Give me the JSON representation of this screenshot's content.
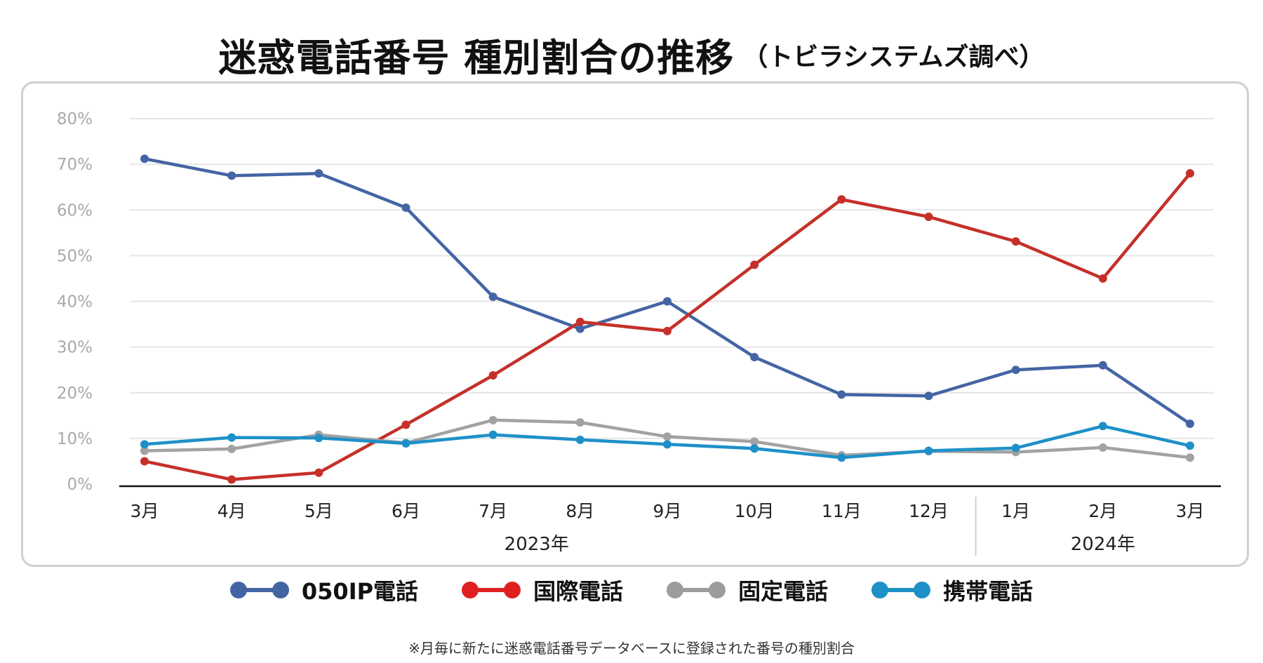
{
  "title": "迷惑電話番号 種別割合の推移",
  "subtitle": "（トビラシステムズ調べ）",
  "footnote": "※月毎に新たに迷惑電話番号データベースに登録された番号の種別割合",
  "chart_data": {
    "type": "line",
    "categories": [
      "3月",
      "4月",
      "5月",
      "6月",
      "7月",
      "8月",
      "9月",
      "10月",
      "11月",
      "12月",
      "1月",
      "2月",
      "3月"
    ],
    "year_labels": [
      {
        "label": "2023年",
        "from": 0,
        "to": 9
      },
      {
        "label": "2024年",
        "from": 10,
        "to": 12
      }
    ],
    "ylim": [
      0,
      80
    ],
    "yticks": [
      0,
      10,
      20,
      30,
      40,
      50,
      60,
      70,
      80
    ],
    "ytick_labels": [
      "0%",
      "10%",
      "20%",
      "30%",
      "40%",
      "50%",
      "60%",
      "70%",
      "80%"
    ],
    "grid": true,
    "legend_position": "bottom",
    "series": [
      {
        "name": "050IP電話",
        "color": "#4465a4",
        "values": [
          71.2,
          67.5,
          68.0,
          60.5,
          41.0,
          34.0,
          40.0,
          27.8,
          19.6,
          19.3,
          25.0,
          26.0,
          13.2
        ]
      },
      {
        "name": "国際電話",
        "color": "#c5302a",
        "values": [
          5.0,
          1.0,
          2.5,
          13.0,
          23.8,
          35.5,
          33.5,
          48.0,
          62.3,
          58.5,
          53.1,
          45.0,
          68.0
        ]
      },
      {
        "name": "固定電話",
        "color": "#a2a2a2",
        "values": [
          7.3,
          7.7,
          10.8,
          9.0,
          14.0,
          13.5,
          10.4,
          9.3,
          6.3,
          7.2,
          7.0,
          8.0,
          5.8
        ]
      },
      {
        "name": "携帯電話",
        "color": "#1e90c8",
        "values": [
          8.7,
          10.2,
          10.1,
          8.9,
          10.8,
          9.7,
          8.7,
          7.8,
          5.8,
          7.3,
          7.9,
          12.7,
          8.4
        ]
      }
    ]
  },
  "legend_colors": {
    "050IP電話": "#4465a4",
    "国際電話": "#e02020",
    "固定電話": "#9c9c9c",
    "携帯電話": "#1e90c8"
  }
}
